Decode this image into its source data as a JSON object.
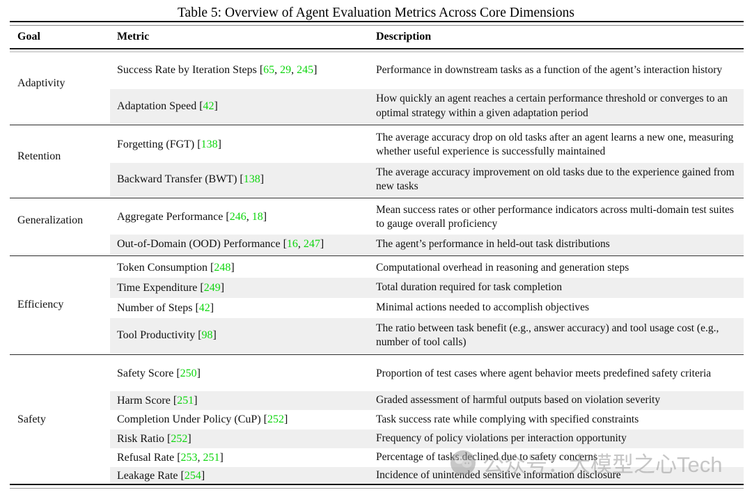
{
  "title": "Table 5: Overview of Agent Evaluation Metrics Across Core Dimensions",
  "columns": {
    "goal": "Goal",
    "metric": "Metric",
    "description": "Description"
  },
  "citation_format": {
    "open": "[",
    "separator": ", ",
    "close": "]"
  },
  "colors": {
    "citation_green": "#0ED60E",
    "stripe": "#EFEFEF",
    "rule": "#111111",
    "watermark_gray": "#9A9A9A"
  },
  "groups": [
    {
      "goal": "Adaptivity",
      "rows": [
        {
          "metric": "Success Rate by Iteration Steps",
          "citations": [
            "65",
            "29",
            "245"
          ],
          "description": "Performance in downstream tasks as a function of the agent’s interaction history"
        },
        {
          "metric": "Adaptation Speed",
          "citations": [
            "42"
          ],
          "description": "How quickly an agent reaches a certain performance threshold or converges to an optimal strategy within a given adaptation period"
        }
      ]
    },
    {
      "goal": "Retention",
      "rows": [
        {
          "metric": "Forgetting (FGT)",
          "citations": [
            "138"
          ],
          "description": "The average accuracy drop on old tasks after an agent learns a new one, measuring whether useful experience is successfully maintained"
        },
        {
          "metric": "Backward Transfer (BWT)",
          "citations": [
            "138"
          ],
          "description": "The average accuracy improvement on old tasks due to the experience gained from new tasks"
        }
      ]
    },
    {
      "goal": "Generalization",
      "rows": [
        {
          "metric": "Aggregate Performance",
          "citations": [
            "246",
            "18"
          ],
          "description": "Mean success rates or other performance indicators across multi-domain test suites to gauge overall proficiency"
        },
        {
          "metric": "Out-of-Domain (OOD) Performance",
          "citations": [
            "16",
            "247"
          ],
          "description": "The agent’s performance in held-out task distributions"
        }
      ]
    },
    {
      "goal": "Efficiency",
      "rows": [
        {
          "metric": "Token Consumption",
          "citations": [
            "248"
          ],
          "description": "Computational overhead in reasoning and generation steps"
        },
        {
          "metric": "Time Expenditure",
          "citations": [
            "249"
          ],
          "description": "Total duration required for task completion"
        },
        {
          "metric": "Number of Steps",
          "citations": [
            "42"
          ],
          "description": "Minimal actions needed to accomplish objectives"
        },
        {
          "metric": "Tool Productivity",
          "citations": [
            "98"
          ],
          "description": "The ratio between task benefit (e.g., answer accuracy) and tool usage cost (e.g., number of tool calls)"
        }
      ]
    },
    {
      "goal": "Safety",
      "rows": [
        {
          "metric": "Safety Score",
          "citations": [
            "250"
          ],
          "description": "Proportion of test cases where agent behavior meets predefined safety criteria"
        },
        {
          "metric": "Harm Score",
          "citations": [
            "251"
          ],
          "description": "Graded assessment of harmful outputs based on violation severity"
        },
        {
          "metric": "Completion Under Policy (CuP)",
          "citations": [
            "252"
          ],
          "description": "Task success rate while complying with specified constraints"
        },
        {
          "metric": "Risk Ratio",
          "citations": [
            "252"
          ],
          "description": "Frequency of policy violations per interaction opportunity"
        },
        {
          "metric": "Refusal Rate",
          "citations": [
            "253",
            "251"
          ],
          "description": "Percentage of tasks declined due to safety concerns"
        },
        {
          "metric": "Leakage Rate",
          "citations": [
            "254"
          ],
          "description": "Incidence of unintended sensitive information disclosure"
        }
      ]
    }
  ],
  "watermark": {
    "text": "公众号：大模型之心Tech"
  }
}
